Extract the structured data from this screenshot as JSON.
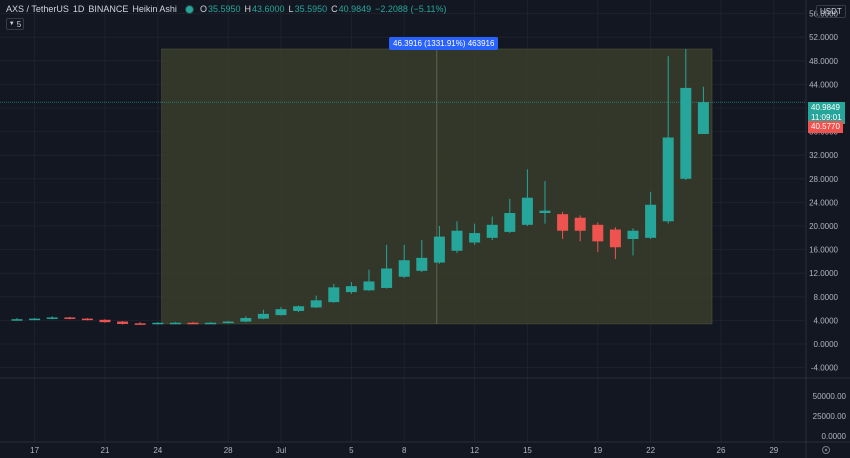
{
  "header": {
    "symbol": "AXS / TetherUS",
    "interval": "1D",
    "exchange": "BINANCE",
    "chart_style": "Heikin Ashi",
    "o_label": "O",
    "o_value": "35.5950",
    "h_label": "H",
    "h_value": "43.6000",
    "l_label": "L",
    "l_value": "35.5950",
    "c_label": "C",
    "c_value": "40.9849",
    "change": "−2.2088 (−5.11%)",
    "indicator_count": "5"
  },
  "unit_label": "USDT",
  "measure_label": "46.3916 (1331.91%) 463916",
  "badges": {
    "last_price": "40.9849",
    "countdown": "11:09:01",
    "second_price": "40.5770"
  },
  "colors": {
    "background": "#131722",
    "up": "#26a69a",
    "down": "#ef5350",
    "measure_fill": "#3a3d2a",
    "measure_label_bg": "#2962ff"
  },
  "chart_data": {
    "type": "candlestick",
    "style": "Heikin Ashi",
    "y_axis": {
      "range": [
        -6,
        58
      ],
      "ticks": [
        "56.0000",
        "52.0000",
        "48.0000",
        "44.0000",
        "40.0000",
        "36.0000",
        "32.0000",
        "28.0000",
        "24.0000",
        "20.0000",
        "16.0000",
        "12.0000",
        "8.0000",
        "4.0000",
        "0.0000",
        "-4.0000"
      ]
    },
    "volume_axis": {
      "ticks": [
        "50000.00",
        "25000.00",
        "0.0000"
      ]
    },
    "x_axis": {
      "ticks": [
        {
          "label": "17",
          "index": 1
        },
        {
          "label": "21",
          "index": 5
        },
        {
          "label": "24",
          "index": 8
        },
        {
          "label": "28",
          "index": 12
        },
        {
          "label": "Jul",
          "index": 15
        },
        {
          "label": "5",
          "index": 19
        },
        {
          "label": "8",
          "index": 22
        },
        {
          "label": "12",
          "index": 26
        },
        {
          "label": "15",
          "index": 29
        },
        {
          "label": "19",
          "index": 33
        },
        {
          "label": "22",
          "index": 36
        },
        {
          "label": "26",
          "index": 40
        },
        {
          "label": "29",
          "index": 43
        }
      ]
    },
    "candles": [
      {
        "i": 0,
        "o": 4.1,
        "h": 4.4,
        "l": 4.0,
        "c": 4.2
      },
      {
        "i": 1,
        "o": 4.2,
        "h": 4.4,
        "l": 4.1,
        "c": 4.3
      },
      {
        "i": 2,
        "o": 4.3,
        "h": 4.7,
        "l": 4.2,
        "c": 4.5
      },
      {
        "i": 3,
        "o": 4.5,
        "h": 4.6,
        "l": 4.2,
        "c": 4.3
      },
      {
        "i": 4,
        "o": 4.3,
        "h": 4.4,
        "l": 4.0,
        "c": 4.1
      },
      {
        "i": 5,
        "o": 4.1,
        "h": 4.2,
        "l": 3.6,
        "c": 3.7
      },
      {
        "i": 6,
        "o": 3.8,
        "h": 3.9,
        "l": 3.3,
        "c": 3.4
      },
      {
        "i": 7,
        "o": 3.5,
        "h": 3.7,
        "l": 3.3,
        "c": 3.4
      },
      {
        "i": 8,
        "o": 3.4,
        "h": 3.7,
        "l": 3.3,
        "c": 3.6
      },
      {
        "i": 9,
        "o": 3.5,
        "h": 3.7,
        "l": 3.4,
        "c": 3.6
      },
      {
        "i": 10,
        "o": 3.6,
        "h": 3.7,
        "l": 3.4,
        "c": 3.5
      },
      {
        "i": 11,
        "o": 3.5,
        "h": 3.7,
        "l": 3.4,
        "c": 3.6
      },
      {
        "i": 12,
        "o": 3.6,
        "h": 3.9,
        "l": 3.5,
        "c": 3.8
      },
      {
        "i": 13,
        "o": 3.8,
        "h": 4.7,
        "l": 3.7,
        "c": 4.4
      },
      {
        "i": 14,
        "o": 4.3,
        "h": 5.8,
        "l": 4.2,
        "c": 5.1
      },
      {
        "i": 15,
        "o": 4.9,
        "h": 6.3,
        "l": 4.8,
        "c": 5.9
      },
      {
        "i": 16,
        "o": 5.6,
        "h": 6.5,
        "l": 5.4,
        "c": 6.4
      },
      {
        "i": 17,
        "o": 6.2,
        "h": 8.2,
        "l": 6.1,
        "c": 7.4
      },
      {
        "i": 18,
        "o": 7.1,
        "h": 10.2,
        "l": 7.0,
        "c": 9.6
      },
      {
        "i": 19,
        "o": 8.8,
        "h": 10.5,
        "l": 8.5,
        "c": 9.8
      },
      {
        "i": 20,
        "o": 9.1,
        "h": 12.6,
        "l": 9.0,
        "c": 10.6
      },
      {
        "i": 21,
        "o": 9.5,
        "h": 16.8,
        "l": 9.4,
        "c": 12.8
      },
      {
        "i": 22,
        "o": 11.4,
        "h": 16.8,
        "l": 11.2,
        "c": 14.2
      },
      {
        "i": 23,
        "o": 12.4,
        "h": 17.6,
        "l": 12.2,
        "c": 14.6
      },
      {
        "i": 24,
        "o": 13.8,
        "h": 20.0,
        "l": 13.6,
        "c": 18.2
      },
      {
        "i": 25,
        "o": 15.8,
        "h": 20.8,
        "l": 15.4,
        "c": 19.2
      },
      {
        "i": 26,
        "o": 17.2,
        "h": 20.4,
        "l": 16.8,
        "c": 18.8
      },
      {
        "i": 27,
        "o": 18.0,
        "h": 21.6,
        "l": 17.6,
        "c": 20.2
      },
      {
        "i": 28,
        "o": 19.0,
        "h": 24.6,
        "l": 18.8,
        "c": 22.2
      },
      {
        "i": 29,
        "o": 20.2,
        "h": 29.6,
        "l": 20.0,
        "c": 24.8
      },
      {
        "i": 30,
        "o": 22.2,
        "h": 27.6,
        "l": 20.4,
        "c": 22.6
      },
      {
        "i": 31,
        "o": 22.0,
        "h": 22.4,
        "l": 17.8,
        "c": 19.2
      },
      {
        "i": 32,
        "o": 21.4,
        "h": 21.8,
        "l": 17.4,
        "c": 19.2
      },
      {
        "i": 33,
        "o": 20.2,
        "h": 20.6,
        "l": 15.6,
        "c": 17.4
      },
      {
        "i": 34,
        "o": 19.4,
        "h": 19.8,
        "l": 14.4,
        "c": 16.4
      },
      {
        "i": 35,
        "o": 17.8,
        "h": 19.6,
        "l": 15.0,
        "c": 19.2
      },
      {
        "i": 36,
        "o": 18.0,
        "h": 25.8,
        "l": 17.8,
        "c": 23.6
      },
      {
        "i": 37,
        "o": 20.8,
        "h": 48.8,
        "l": 20.4,
        "c": 35.0
      },
      {
        "i": 38,
        "o": 28.0,
        "h": 50.0,
        "l": 27.8,
        "c": 43.4
      },
      {
        "i": 39,
        "o": 35.6,
        "h": 43.6,
        "l": 35.6,
        "c": 40.98
      }
    ]
  }
}
